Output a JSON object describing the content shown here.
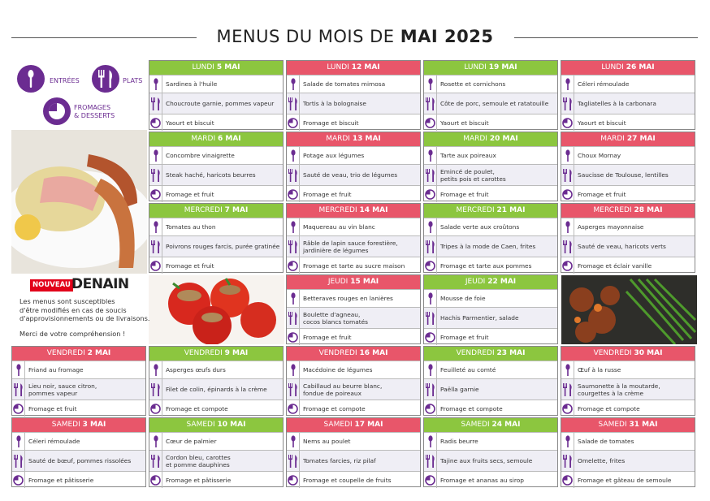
{
  "title": {
    "normal": "MENUS DU MOIS DE",
    "bold": "MAI 2025"
  },
  "legend": {
    "entrees": "ENTRÉES",
    "plats": "PLATS",
    "desserts": "FROMAGES\n& DESSERTS"
  },
  "logo": {
    "badge": "NOUVEAU",
    "name": "DENAIN"
  },
  "notice": {
    "text": "Les menus sont susceptibles\nd'être modifiés en cas de soucis\nd'approvisionnements ou de livraisons.",
    "thanks": "Merci de votre compréhension !"
  },
  "rows": [
    [
      {
        "day": "LUNDI",
        "date": "5 MAI",
        "entree": "Sardines à l'huile",
        "plat": "Choucroute garnie, pommes vapeur",
        "dessert": "Yaourt et biscuit"
      },
      {
        "day": "LUNDI",
        "date": "12 MAI",
        "entree": "Salade de tomates mimosa",
        "plat": "Tortis à la bolognaise",
        "dessert": "Fromage et biscuit"
      },
      {
        "day": "LUNDI",
        "date": "19 MAI",
        "entree": "Rosette et cornichons",
        "plat": "Côte de porc, semoule et ratatouille",
        "dessert": "Yaourt et biscuit"
      },
      {
        "day": "LUNDI",
        "date": "26 MAI",
        "entree": "Céleri rémoulade",
        "plat": "Tagliatelles à la carbonara",
        "dessert": "Yaourt et biscuit"
      }
    ],
    [
      {
        "day": "MARDI",
        "date": "6 MAI",
        "entree": "Concombre vinaigrette",
        "plat": "Steak haché, haricots beurres",
        "dessert": "Fromage et fruit"
      },
      {
        "day": "MARDI",
        "date": "13 MAI",
        "entree": "Potage aux légumes",
        "plat": "Sauté de veau, trio de légumes",
        "dessert": "Fromage et fruit"
      },
      {
        "day": "MARDI",
        "date": "20 MAI",
        "entree": "Tarte aux poireaux",
        "plat": "Emincé de poulet,\npetits pois et carottes",
        "dessert": "Fromage et fruit"
      },
      {
        "day": "MARDI",
        "date": "27 MAI",
        "entree": "Choux Mornay",
        "plat": "Saucisse de Toulouse, lentilles",
        "dessert": "Fromage et fruit"
      }
    ],
    [
      {
        "day": "MERCREDI",
        "date": "7 MAI",
        "entree": "Tomates au thon",
        "plat": "Poivrons rouges farcis, purée gratinée",
        "dessert": "Fromage et fruit"
      },
      {
        "day": "MERCREDI",
        "date": "14 MAI",
        "entree": "Maquereau au vin blanc",
        "plat": "Râble de lapin sauce forestière,\njardinière de légumes",
        "dessert": "Fromage et tarte au sucre maison"
      },
      {
        "day": "MERCREDI",
        "date": "21 MAI",
        "entree": "Salade verte aux croûtons",
        "plat": "Tripes à la mode de Caen, frites",
        "dessert": "Fromage et tarte aux pommes"
      },
      {
        "day": "MERCREDI",
        "date": "28 MAI",
        "entree": "Asperges mayonnaise",
        "plat": "Sauté de veau, haricots verts",
        "dessert": "Fromage et éclair vanille"
      }
    ],
    [
      {
        "day": "JEUDI",
        "date": "15 MAI",
        "entree": "Betteraves rouges en lanières",
        "plat": "Boulette d'agneau,\ncocos blancs tomatés",
        "dessert": "Fromage et fruit"
      },
      {
        "day": "JEUDI",
        "date": "22 MAI",
        "entree": "Mousse de foie",
        "plat": "Hachis Parmentier, salade",
        "dessert": "Fromage et fruit"
      }
    ],
    [
      {
        "day": "VENDREDI",
        "date": "2 MAI",
        "entree": "Friand au fromage",
        "plat": "Lieu noir, sauce citron,\npommes vapeur",
        "dessert": "Fromage et fruit"
      },
      {
        "day": "VENDREDI",
        "date": "9 MAI",
        "entree": "Asperges œufs durs",
        "plat": "Filet de colin, épinards à la crème",
        "dessert": "Fromage et compote"
      },
      {
        "day": "VENDREDI",
        "date": "16 MAI",
        "entree": "Macédoine de légumes",
        "plat": "Cabillaud au beurre blanc,\nfondue de poireaux",
        "dessert": "Fromage et compote"
      },
      {
        "day": "VENDREDI",
        "date": "23 MAI",
        "entree": "Feuilleté au comté",
        "plat": "Paëlla garnie",
        "dessert": "Fromage et compote"
      },
      {
        "day": "VENDREDI",
        "date": "30 MAI",
        "entree": "Œuf à la russe",
        "plat": "Saumonette à la moutarde,\ncourgettes à la crème",
        "dessert": "Fromage et compote"
      }
    ],
    [
      {
        "day": "SAMEDI",
        "date": "3 MAI",
        "entree": "Céleri rémoulade",
        "plat": "Sauté de bœuf, pommes rissolées",
        "dessert": "Fromage et pâtisserie"
      },
      {
        "day": "SAMEDI",
        "date": "10 MAI",
        "entree": "Cœur de palmier",
        "plat": "Cordon bleu, carottes\net pomme dauphines",
        "dessert": "Fromage et pâtisserie"
      },
      {
        "day": "SAMEDI",
        "date": "17 MAI",
        "entree": "Nems au poulet",
        "plat": "Tomates farcies, riz pilaf",
        "dessert": "Fromage et coupelle de fruits"
      },
      {
        "day": "SAMEDI",
        "date": "24 MAI",
        "entree": "Radis beurre",
        "plat": "Tajine aux fruits secs, semoule",
        "dessert": "Fromage et ananas au sirop"
      },
      {
        "day": "SAMEDI",
        "date": "31 MAI",
        "entree": "Salade de tomates",
        "plat": "Omelette, frites",
        "dessert": "Fromage et gâteau de semoule"
      }
    ]
  ]
}
